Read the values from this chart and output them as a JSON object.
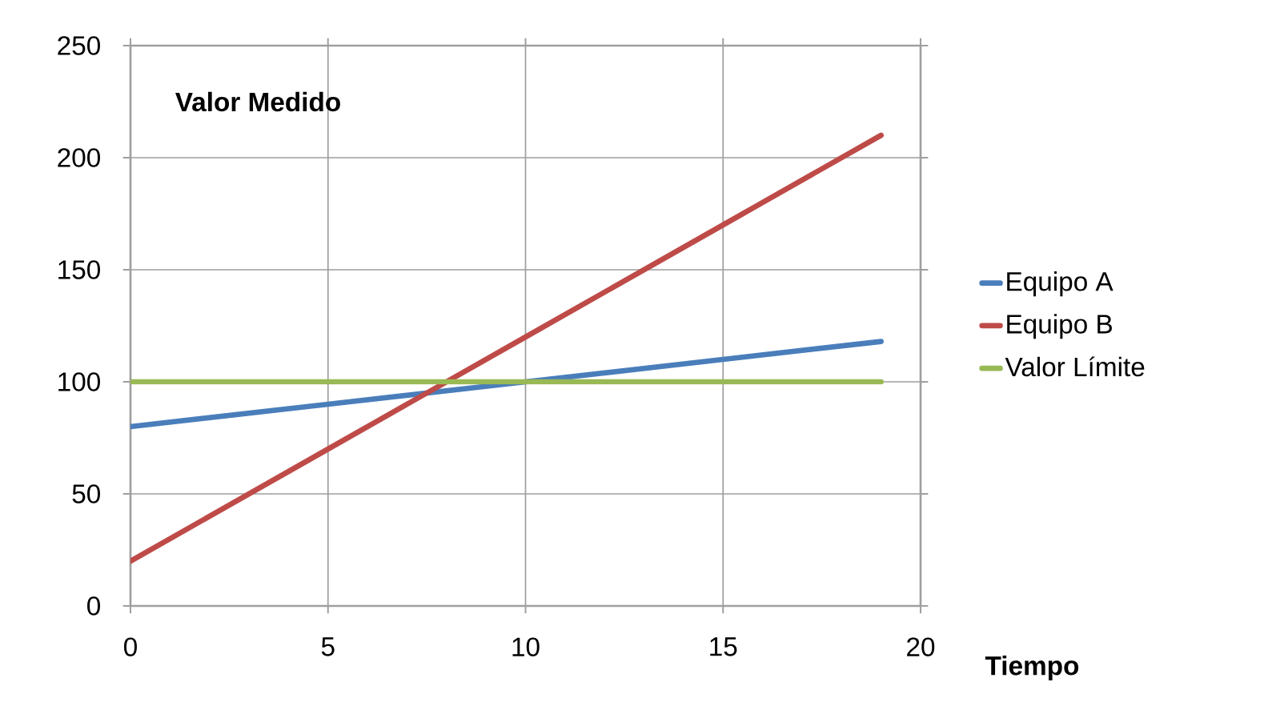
{
  "chart_data": {
    "type": "line",
    "ylabel": "Valor Medido",
    "xlabel": "Tiempo",
    "x": [
      0,
      5,
      10,
      15,
      19
    ],
    "series": [
      {
        "name": "Equipo A",
        "color": "#4a7ebb",
        "values": [
          80,
          90,
          100,
          110,
          118
        ]
      },
      {
        "name": "Equipo B",
        "color": "#be4b48",
        "values": [
          20,
          70,
          120,
          170,
          210
        ]
      },
      {
        "name": "Valor Límite",
        "color": "#98b954",
        "values": [
          100,
          100,
          100,
          100,
          100
        ]
      }
    ],
    "xlim": [
      0,
      20
    ],
    "ylim": [
      0,
      250
    ],
    "xticks": [
      0,
      5,
      10,
      15,
      20
    ],
    "yticks": [
      0,
      50,
      100,
      150,
      200,
      250
    ],
    "grid": true,
    "legend": "right",
    "marker": "none",
    "line_style": "solid"
  }
}
